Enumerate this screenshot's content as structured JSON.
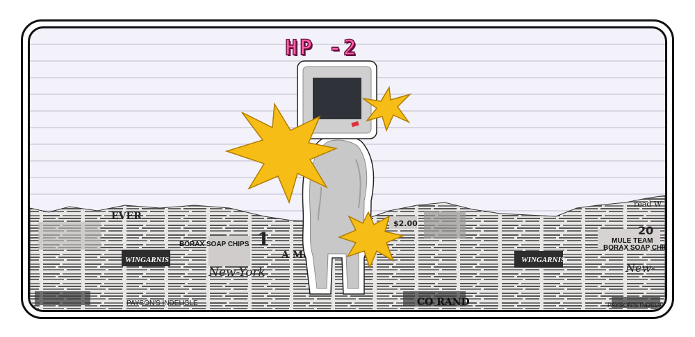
{
  "hud": {
    "hp_text": "HP -2"
  },
  "colors": {
    "background": "#f3f1f9",
    "hp_text": "#ff5fa8",
    "impact_burst": "#f6bd16",
    "screen": "#2f3238",
    "character_body": "#c8c8c8"
  },
  "newspaper_text": {
    "left_headline": "BORAX SOAP CHIPS",
    "left_brand": "WINGARNIS",
    "left_masthead": "New-York",
    "left_sign": "EVER",
    "left_bottom": "PAYSON'S INDELIBLE",
    "mid_price": "$2.00",
    "mid_headline": "BORAX SOAP CHIPS",
    "mid_brand": "WINGARNIS",
    "mid_bottom": "CO RAND",
    "mid_sub": "A Mess",
    "right_number": "20",
    "right_team": "MULE TEAM",
    "right_headline": "BORAX SOAP CHIP",
    "right_brand": "WINGARNIS",
    "right_masthead": "New-",
    "right_bottom": "PAYSON'S INDELIBLE",
    "right_top": "read W"
  }
}
